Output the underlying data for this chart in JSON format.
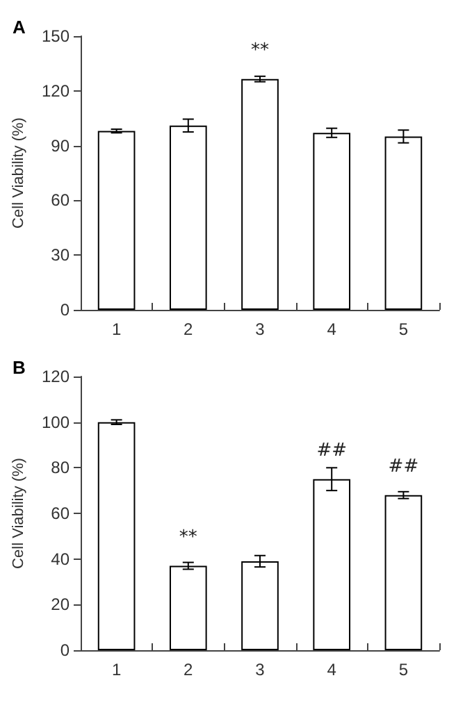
{
  "chart_data": [
    {
      "type": "bar",
      "title": "A",
      "ylabel": "Cell Viability (%)",
      "categories": [
        "1",
        "2",
        "3",
        "4",
        "5"
      ],
      "values": [
        98,
        101,
        126.5,
        97,
        95
      ],
      "errors": [
        1,
        3.5,
        1.5,
        2.5,
        3.5
      ],
      "color": "#ffffff",
      "value_labels": [
        null,
        null,
        "**",
        null,
        null
      ],
      "ylim": [
        0,
        150
      ],
      "yticks": [
        0,
        30,
        60,
        90,
        120,
        150
      ],
      "grid": false
    },
    {
      "type": "bar",
      "title": "B",
      "ylabel": "Cell Viability (%)",
      "categories": [
        "1",
        "2",
        "3",
        "4",
        "5"
      ],
      "values": [
        100,
        37,
        39,
        75,
        68
      ],
      "errors": [
        1,
        1.5,
        2.5,
        5,
        1.5
      ],
      "color": "#ffffff",
      "value_labels": [
        null,
        "**",
        null,
        "##",
        "##"
      ],
      "ylim": [
        0,
        120
      ],
      "yticks": [
        0,
        20,
        40,
        60,
        80,
        100,
        120
      ],
      "grid": false
    }
  ]
}
